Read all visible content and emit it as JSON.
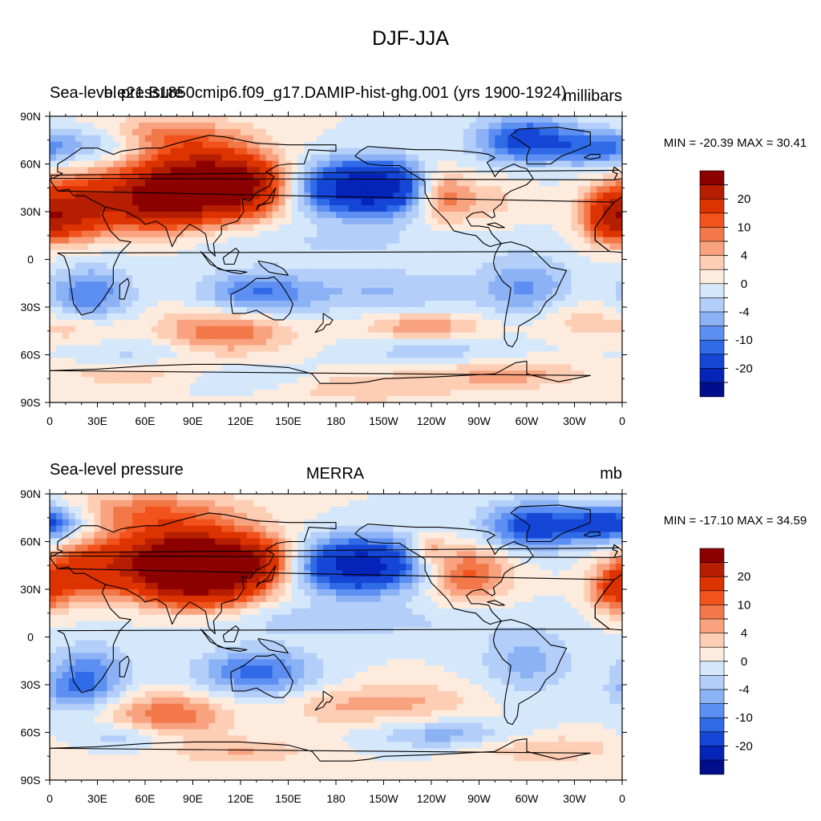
{
  "title": "DJF-JJA",
  "colors": {
    "levels": [
      "#8c0000",
      "#b51e00",
      "#dc3300",
      "#f2521b",
      "#f27849",
      "#f8a27f",
      "#fdcdb4",
      "#fdebdd",
      "#d5e8fb",
      "#b3cef8",
      "#8cb2f6",
      "#5d8ff2",
      "#2f6ae7",
      "#1546d6",
      "#0524b8",
      "#000e8c"
    ],
    "coast": "#000000"
  },
  "panels": [
    {
      "left_title": "Sea-level pressure",
      "center_title": "b.e21.B1850cmip6.f09_g17.DAMIP-hist-ghg.001 (yrs 1900-1924)",
      "right_title": "millibars",
      "min_max": "MIN = -20.39 MAX =  30.41"
    },
    {
      "left_title": "Sea-level pressure",
      "center_title": "MERRA",
      "right_title": "mb",
      "min_max": "MIN = -17.10 MAX =  34.59"
    }
  ],
  "lat_labels": [
    "90N",
    "60N",
    "30N",
    "0",
    "30S",
    "60S",
    "90S"
  ],
  "lon_labels": [
    "0",
    "30E",
    "60E",
    "90E",
    "120E",
    "150E",
    "180",
    "150W",
    "120W",
    "90W",
    "60W",
    "30W",
    "0"
  ],
  "colorbar_labels": [
    "20",
    "10",
    "4",
    "0",
    "-4",
    "-10",
    "-20"
  ],
  "chart_data": [
    {
      "type": "heatmap",
      "title": "DJF-JJA",
      "subtitle": "b.e21.B1850cmip6.f09_g17.DAMIP-hist-ghg.001 (yrs 1900-1924)",
      "variable": "Sea-level pressure",
      "units": "millibars",
      "min": -20.39,
      "max": 30.41,
      "xlabel": "",
      "ylabel": "",
      "x_range": [
        0,
        360
      ],
      "y_range": [
        -90,
        90
      ],
      "contour_levels": [
        -30,
        -20,
        -15,
        -10,
        -8,
        -6,
        -4,
        -2,
        0,
        2,
        4,
        6,
        8,
        10,
        15,
        20,
        30
      ]
    },
    {
      "type": "heatmap",
      "title": "DJF-JJA",
      "subtitle": "MERRA",
      "variable": "Sea-level pressure",
      "units": "mb",
      "min": -17.1,
      "max": 34.59,
      "xlabel": "",
      "ylabel": "",
      "x_range": [
        0,
        360
      ],
      "y_range": [
        -90,
        90
      ],
      "contour_levels": [
        -30,
        -20,
        -15,
        -10,
        -8,
        -6,
        -4,
        -2,
        0,
        2,
        4,
        6,
        8,
        10,
        15,
        20,
        30
      ]
    }
  ]
}
